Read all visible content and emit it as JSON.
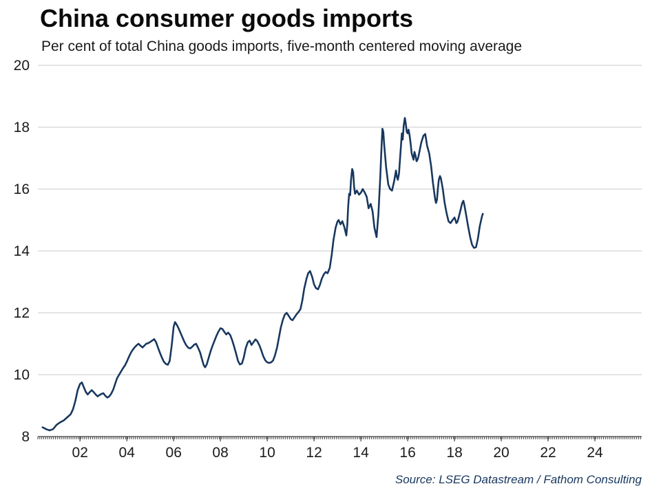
{
  "colors": {
    "line": "#17375e",
    "grid": "#c9c9c9",
    "axis": "#3f3f3f",
    "text": "#1a1a1a",
    "source_text": "#17375e",
    "background": "#ffffff"
  },
  "source": "Source: LSEG Datastream / Fathom Consulting",
  "chart_data": {
    "type": "line",
    "title": "China consumer goods imports",
    "subtitle": "Per cent of total China goods imports, five-month centered moving average",
    "source": "Source: LSEG Datastream / Fathom Consulting",
    "xlabel": "",
    "ylabel": "Per cent of total China goods imports",
    "grid": "horizontal",
    "legend": "none",
    "x_axis": {
      "range": [
        2000.2,
        2026.0
      ],
      "tick_years": [
        2002,
        2004,
        2006,
        2008,
        2010,
        2012,
        2014,
        2016,
        2018,
        2020,
        2022,
        2024
      ],
      "tick_labels": [
        "02",
        "04",
        "06",
        "08",
        "10",
        "12",
        "14",
        "16",
        "18",
        "20",
        "22",
        "24"
      ],
      "minor_tick_step_years": 0.083333
    },
    "y_axis": {
      "range": [
        8,
        20
      ],
      "ticks": [
        8,
        10,
        12,
        14,
        16,
        18,
        20
      ]
    },
    "series": [
      {
        "name": "China consumer goods imports, per cent of total goods imports (five-month centered moving average)",
        "color": "#17375e",
        "points": [
          [
            2000.4,
            8.3
          ],
          [
            2000.55,
            8.24
          ],
          [
            2000.7,
            8.2
          ],
          [
            2000.85,
            8.24
          ],
          [
            2001.0,
            8.38
          ],
          [
            2001.15,
            8.46
          ],
          [
            2001.3,
            8.52
          ],
          [
            2001.45,
            8.62
          ],
          [
            2001.6,
            8.72
          ],
          [
            2001.7,
            8.88
          ],
          [
            2001.8,
            9.15
          ],
          [
            2001.9,
            9.5
          ],
          [
            2002.0,
            9.7
          ],
          [
            2002.08,
            9.75
          ],
          [
            2002.17,
            9.58
          ],
          [
            2002.25,
            9.44
          ],
          [
            2002.33,
            9.36
          ],
          [
            2002.42,
            9.44
          ],
          [
            2002.5,
            9.5
          ],
          [
            2002.58,
            9.44
          ],
          [
            2002.67,
            9.36
          ],
          [
            2002.75,
            9.3
          ],
          [
            2002.83,
            9.34
          ],
          [
            2002.92,
            9.38
          ],
          [
            2003.0,
            9.4
          ],
          [
            2003.08,
            9.32
          ],
          [
            2003.17,
            9.26
          ],
          [
            2003.25,
            9.3
          ],
          [
            2003.33,
            9.38
          ],
          [
            2003.42,
            9.52
          ],
          [
            2003.5,
            9.7
          ],
          [
            2003.58,
            9.88
          ],
          [
            2003.67,
            10.0
          ],
          [
            2003.75,
            10.1
          ],
          [
            2003.83,
            10.2
          ],
          [
            2003.92,
            10.3
          ],
          [
            2004.0,
            10.42
          ],
          [
            2004.08,
            10.56
          ],
          [
            2004.17,
            10.7
          ],
          [
            2004.25,
            10.8
          ],
          [
            2004.33,
            10.88
          ],
          [
            2004.42,
            10.95
          ],
          [
            2004.5,
            11.0
          ],
          [
            2004.58,
            10.94
          ],
          [
            2004.67,
            10.88
          ],
          [
            2004.75,
            10.94
          ],
          [
            2004.83,
            11.0
          ],
          [
            2004.92,
            11.02
          ],
          [
            2005.0,
            11.06
          ],
          [
            2005.08,
            11.1
          ],
          [
            2005.17,
            11.15
          ],
          [
            2005.25,
            11.05
          ],
          [
            2005.33,
            10.88
          ],
          [
            2005.42,
            10.7
          ],
          [
            2005.5,
            10.55
          ],
          [
            2005.58,
            10.42
          ],
          [
            2005.67,
            10.35
          ],
          [
            2005.75,
            10.32
          ],
          [
            2005.83,
            10.44
          ],
          [
            2005.92,
            10.95
          ],
          [
            2006.0,
            11.55
          ],
          [
            2006.06,
            11.7
          ],
          [
            2006.13,
            11.62
          ],
          [
            2006.21,
            11.5
          ],
          [
            2006.29,
            11.36
          ],
          [
            2006.38,
            11.2
          ],
          [
            2006.46,
            11.06
          ],
          [
            2006.54,
            10.95
          ],
          [
            2006.63,
            10.87
          ],
          [
            2006.71,
            10.85
          ],
          [
            2006.79,
            10.9
          ],
          [
            2006.88,
            10.97
          ],
          [
            2006.96,
            11.0
          ],
          [
            2007.04,
            10.88
          ],
          [
            2007.13,
            10.72
          ],
          [
            2007.21,
            10.5
          ],
          [
            2007.29,
            10.3
          ],
          [
            2007.35,
            10.24
          ],
          [
            2007.42,
            10.34
          ],
          [
            2007.5,
            10.55
          ],
          [
            2007.58,
            10.76
          ],
          [
            2007.67,
            10.95
          ],
          [
            2007.75,
            11.1
          ],
          [
            2007.83,
            11.26
          ],
          [
            2007.92,
            11.4
          ],
          [
            2008.0,
            11.5
          ],
          [
            2008.08,
            11.48
          ],
          [
            2008.17,
            11.38
          ],
          [
            2008.25,
            11.3
          ],
          [
            2008.33,
            11.36
          ],
          [
            2008.42,
            11.28
          ],
          [
            2008.5,
            11.12
          ],
          [
            2008.58,
            10.92
          ],
          [
            2008.67,
            10.68
          ],
          [
            2008.75,
            10.45
          ],
          [
            2008.83,
            10.33
          ],
          [
            2008.92,
            10.36
          ],
          [
            2009.0,
            10.56
          ],
          [
            2009.08,
            10.86
          ],
          [
            2009.17,
            11.05
          ],
          [
            2009.25,
            11.1
          ],
          [
            2009.33,
            10.96
          ],
          [
            2009.42,
            11.06
          ],
          [
            2009.5,
            11.14
          ],
          [
            2009.58,
            11.08
          ],
          [
            2009.67,
            10.94
          ],
          [
            2009.75,
            10.78
          ],
          [
            2009.83,
            10.6
          ],
          [
            2009.92,
            10.46
          ],
          [
            2010.0,
            10.4
          ],
          [
            2010.08,
            10.38
          ],
          [
            2010.17,
            10.4
          ],
          [
            2010.25,
            10.46
          ],
          [
            2010.33,
            10.62
          ],
          [
            2010.42,
            10.88
          ],
          [
            2010.5,
            11.2
          ],
          [
            2010.58,
            11.52
          ],
          [
            2010.67,
            11.78
          ],
          [
            2010.75,
            11.94
          ],
          [
            2010.83,
            12.0
          ],
          [
            2010.92,
            11.9
          ],
          [
            2011.0,
            11.8
          ],
          [
            2011.08,
            11.76
          ],
          [
            2011.17,
            11.86
          ],
          [
            2011.25,
            11.95
          ],
          [
            2011.33,
            12.02
          ],
          [
            2011.42,
            12.12
          ],
          [
            2011.5,
            12.4
          ],
          [
            2011.58,
            12.78
          ],
          [
            2011.67,
            13.08
          ],
          [
            2011.75,
            13.28
          ],
          [
            2011.83,
            13.35
          ],
          [
            2011.92,
            13.16
          ],
          [
            2012.0,
            12.92
          ],
          [
            2012.08,
            12.8
          ],
          [
            2012.17,
            12.76
          ],
          [
            2012.25,
            12.9
          ],
          [
            2012.33,
            13.1
          ],
          [
            2012.42,
            13.25
          ],
          [
            2012.5,
            13.32
          ],
          [
            2012.58,
            13.28
          ],
          [
            2012.67,
            13.45
          ],
          [
            2012.75,
            13.85
          ],
          [
            2012.83,
            14.35
          ],
          [
            2012.92,
            14.75
          ],
          [
            2013.0,
            14.95
          ],
          [
            2013.05,
            15.0
          ],
          [
            2013.13,
            14.86
          ],
          [
            2013.21,
            14.96
          ],
          [
            2013.29,
            14.78
          ],
          [
            2013.38,
            14.5
          ],
          [
            2013.42,
            14.85
          ],
          [
            2013.46,
            15.45
          ],
          [
            2013.5,
            15.85
          ],
          [
            2013.54,
            15.8
          ],
          [
            2013.58,
            16.3
          ],
          [
            2013.63,
            16.65
          ],
          [
            2013.67,
            16.55
          ],
          [
            2013.71,
            16.1
          ],
          [
            2013.75,
            15.85
          ],
          [
            2013.83,
            15.95
          ],
          [
            2013.92,
            15.82
          ],
          [
            2014.0,
            15.88
          ],
          [
            2014.08,
            16.0
          ],
          [
            2014.17,
            15.88
          ],
          [
            2014.25,
            15.75
          ],
          [
            2014.33,
            15.38
          ],
          [
            2014.42,
            15.52
          ],
          [
            2014.5,
            15.28
          ],
          [
            2014.58,
            14.75
          ],
          [
            2014.67,
            14.45
          ],
          [
            2014.75,
            15.2
          ],
          [
            2014.83,
            16.4
          ],
          [
            2014.88,
            17.3
          ],
          [
            2014.92,
            17.95
          ],
          [
            2014.96,
            17.85
          ],
          [
            2015.0,
            17.4
          ],
          [
            2015.08,
            16.7
          ],
          [
            2015.17,
            16.15
          ],
          [
            2015.25,
            16.0
          ],
          [
            2015.33,
            15.95
          ],
          [
            2015.42,
            16.25
          ],
          [
            2015.5,
            16.6
          ],
          [
            2015.54,
            16.4
          ],
          [
            2015.58,
            16.3
          ],
          [
            2015.63,
            16.5
          ],
          [
            2015.67,
            16.95
          ],
          [
            2015.71,
            17.35
          ],
          [
            2015.75,
            17.8
          ],
          [
            2015.79,
            17.6
          ],
          [
            2015.83,
            18.05
          ],
          [
            2015.88,
            18.3
          ],
          [
            2015.92,
            18.1
          ],
          [
            2015.96,
            17.85
          ],
          [
            2016.0,
            17.8
          ],
          [
            2016.04,
            17.92
          ],
          [
            2016.08,
            17.75
          ],
          [
            2016.13,
            17.45
          ],
          [
            2016.17,
            17.15
          ],
          [
            2016.25,
            16.95
          ],
          [
            2016.29,
            17.2
          ],
          [
            2016.33,
            17.1
          ],
          [
            2016.38,
            16.9
          ],
          [
            2016.42,
            16.95
          ],
          [
            2016.46,
            17.05
          ],
          [
            2016.5,
            17.2
          ],
          [
            2016.58,
            17.5
          ],
          [
            2016.67,
            17.72
          ],
          [
            2016.75,
            17.78
          ],
          [
            2016.79,
            17.6
          ],
          [
            2016.83,
            17.4
          ],
          [
            2016.92,
            17.15
          ],
          [
            2017.0,
            16.75
          ],
          [
            2017.08,
            16.2
          ],
          [
            2017.17,
            15.7
          ],
          [
            2017.21,
            15.55
          ],
          [
            2017.25,
            15.65
          ],
          [
            2017.29,
            16.0
          ],
          [
            2017.33,
            16.3
          ],
          [
            2017.38,
            16.42
          ],
          [
            2017.42,
            16.35
          ],
          [
            2017.5,
            16.0
          ],
          [
            2017.58,
            15.55
          ],
          [
            2017.67,
            15.2
          ],
          [
            2017.75,
            14.95
          ],
          [
            2017.83,
            14.9
          ],
          [
            2017.92,
            15.0
          ],
          [
            2018.0,
            15.08
          ],
          [
            2018.04,
            15.0
          ],
          [
            2018.08,
            14.9
          ],
          [
            2018.13,
            14.95
          ],
          [
            2018.17,
            15.05
          ],
          [
            2018.25,
            15.3
          ],
          [
            2018.33,
            15.55
          ],
          [
            2018.38,
            15.62
          ],
          [
            2018.42,
            15.5
          ],
          [
            2018.5,
            15.15
          ],
          [
            2018.58,
            14.8
          ],
          [
            2018.67,
            14.45
          ],
          [
            2018.75,
            14.2
          ],
          [
            2018.83,
            14.1
          ],
          [
            2018.92,
            14.12
          ],
          [
            2019.0,
            14.4
          ],
          [
            2019.08,
            14.8
          ],
          [
            2019.17,
            15.1
          ],
          [
            2019.21,
            15.2
          ]
        ]
      }
    ]
  }
}
